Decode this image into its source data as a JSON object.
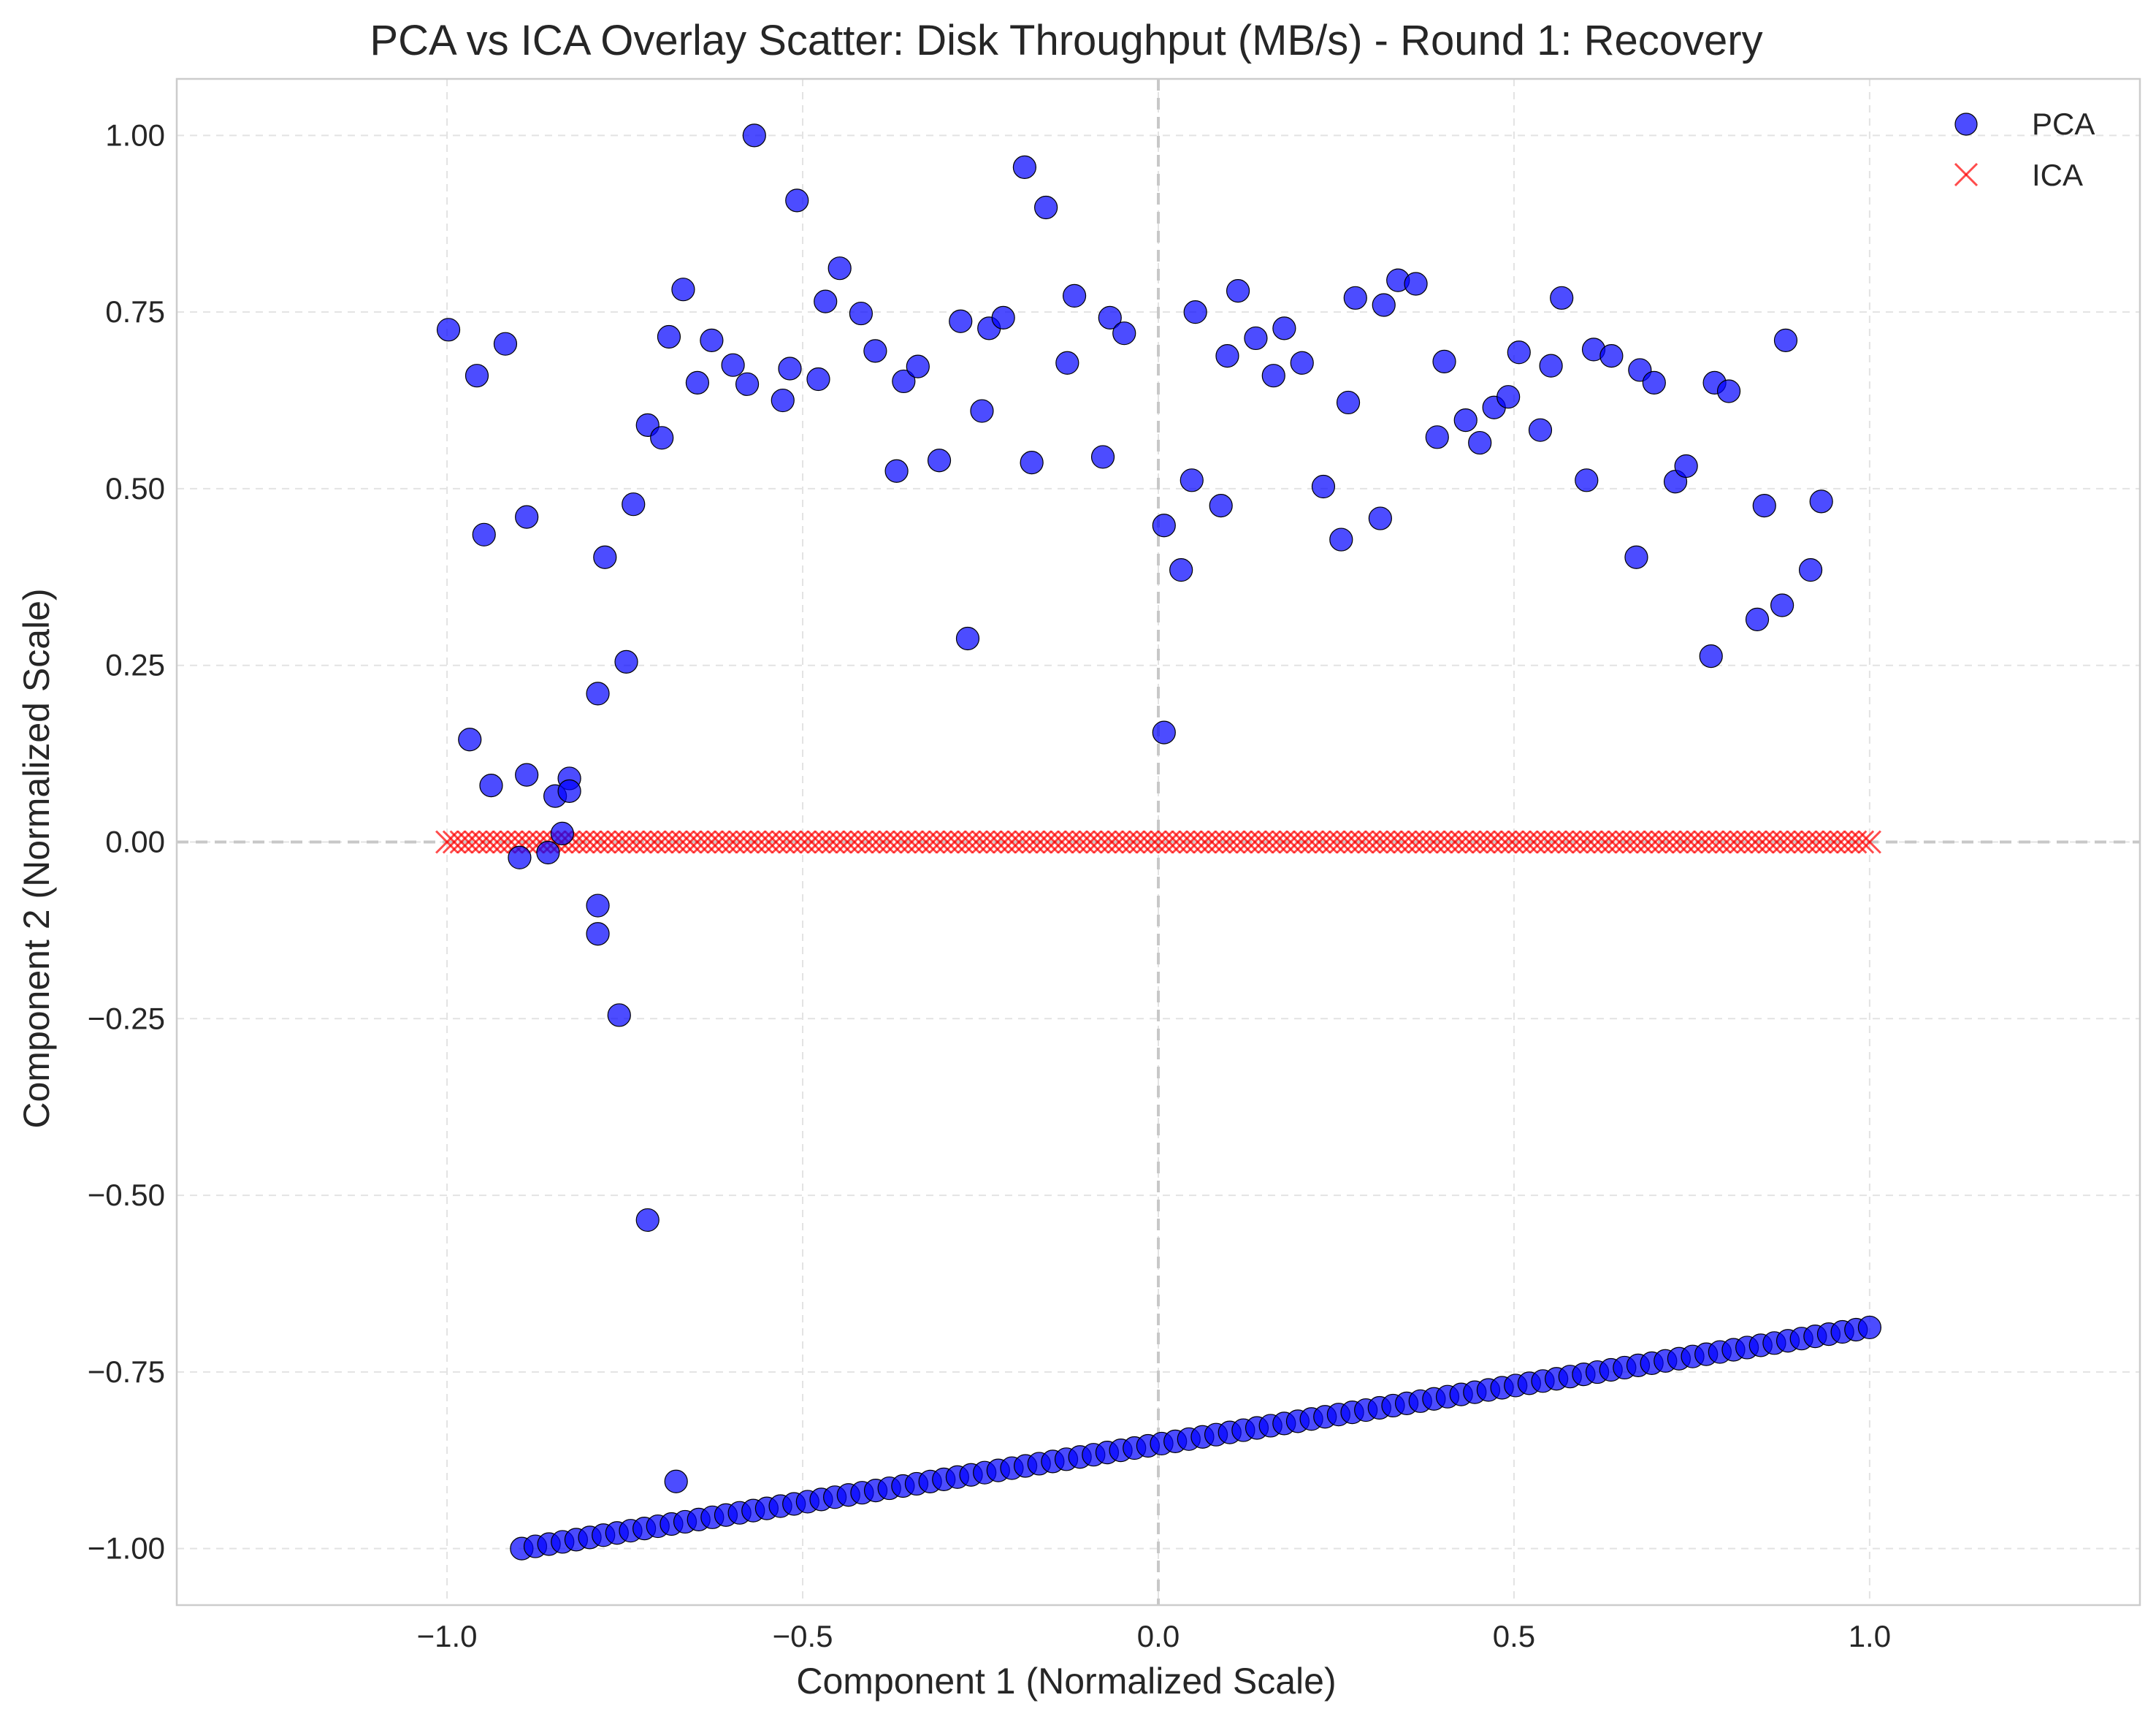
{
  "chart_data": {
    "type": "scatter",
    "title": "PCA vs ICA Overlay Scatter: Disk Throughput (MB/s) - Round 1: Recovery",
    "xlabel": "Component 1 (Normalized Scale)",
    "ylabel": "Component 2 (Normalized Scale)",
    "xlim": [
      -1.38,
      1.38
    ],
    "ylim": [
      -1.08,
      1.08
    ],
    "x_ticks": [
      -1.0,
      -0.5,
      0.0,
      0.5,
      1.0
    ],
    "x_tick_labels": [
      "−1.0",
      "−0.5",
      "0.0",
      "0.5",
      "1.0"
    ],
    "y_ticks": [
      1.0,
      0.75,
      0.5,
      0.25,
      0.0,
      -0.25,
      -0.5,
      -0.75,
      -1.0
    ],
    "y_tick_labels": [
      "1.00",
      "0.75",
      "0.50",
      "0.25",
      "0.00",
      "−0.25",
      "−0.50",
      "−0.75",
      "−1.00"
    ],
    "grid": true,
    "reference_lines": {
      "x": 0,
      "y": 0
    },
    "legend": {
      "placement": "top-right",
      "entries": [
        {
          "label": "PCA",
          "marker": "circle",
          "color": "#0000ff"
        },
        {
          "label": "ICA",
          "marker": "x",
          "color": "#ff0000"
        }
      ]
    },
    "series": [
      {
        "name": "PCA",
        "marker": "circle",
        "color": "#0000ff",
        "points": [
          [
            -0.998,
            0.725
          ],
          [
            -0.958,
            0.66
          ],
          [
            -0.918,
            0.705
          ],
          [
            -0.948,
            0.435
          ],
          [
            -0.888,
            0.46
          ],
          [
            -0.968,
            0.145
          ],
          [
            -0.938,
            0.08
          ],
          [
            -0.888,
            0.095
          ],
          [
            -0.828,
            0.09
          ],
          [
            -0.848,
            0.065
          ],
          [
            -0.828,
            0.072
          ],
          [
            -0.838,
            0.012
          ],
          [
            -0.898,
            -0.022
          ],
          [
            -0.858,
            -0.015
          ],
          [
            -0.788,
            0.21
          ],
          [
            -0.778,
            0.403
          ],
          [
            -0.748,
            0.255
          ],
          [
            -0.738,
            0.478
          ],
          [
            -0.788,
            -0.09
          ],
          [
            -0.788,
            -0.13
          ],
          [
            -0.758,
            -0.245
          ],
          [
            -0.718,
            -0.535
          ],
          [
            -0.678,
            -0.905
          ],
          [
            -0.718,
            0.59
          ],
          [
            -0.698,
            0.572
          ],
          [
            -0.688,
            0.715
          ],
          [
            -0.668,
            0.782
          ],
          [
            -0.648,
            0.65
          ],
          [
            -0.628,
            0.71
          ],
          [
            -0.598,
            0.675
          ],
          [
            -0.578,
            0.648
          ],
          [
            -0.568,
            1.0
          ],
          [
            -0.528,
            0.625
          ],
          [
            -0.518,
            0.67
          ],
          [
            -0.508,
            0.908
          ],
          [
            -0.478,
            0.655
          ],
          [
            -0.468,
            0.765
          ],
          [
            -0.448,
            0.812
          ],
          [
            -0.418,
            0.748
          ],
          [
            -0.398,
            0.695
          ],
          [
            -0.368,
            0.525
          ],
          [
            -0.358,
            0.652
          ],
          [
            -0.338,
            0.673
          ],
          [
            -0.308,
            0.54
          ],
          [
            -0.278,
            0.737
          ],
          [
            -0.268,
            0.288
          ],
          [
            -0.248,
            0.61
          ],
          [
            -0.238,
            0.727
          ],
          [
            -0.218,
            0.742
          ],
          [
            -0.188,
            0.955
          ],
          [
            -0.178,
            0.537
          ],
          [
            -0.158,
            0.898
          ],
          [
            -0.128,
            0.678
          ],
          [
            -0.118,
            0.773
          ],
          [
            -0.078,
            0.545
          ],
          [
            -0.068,
            0.742
          ],
          [
            -0.048,
            0.72
          ],
          [
            0.008,
            0.155
          ],
          [
            0.008,
            0.448
          ],
          [
            0.032,
            0.385
          ],
          [
            0.047,
            0.512
          ],
          [
            0.052,
            0.75
          ],
          [
            0.088,
            0.476
          ],
          [
            0.097,
            0.688
          ],
          [
            0.112,
            0.78
          ],
          [
            0.137,
            0.713
          ],
          [
            0.162,
            0.66
          ],
          [
            0.177,
            0.727
          ],
          [
            0.202,
            0.678
          ],
          [
            0.232,
            0.503
          ],
          [
            0.257,
            0.428
          ],
          [
            0.267,
            0.622
          ],
          [
            0.277,
            0.77
          ],
          [
            0.312,
            0.458
          ],
          [
            0.317,
            0.76
          ],
          [
            0.337,
            0.795
          ],
          [
            0.362,
            0.79
          ],
          [
            0.392,
            0.573
          ],
          [
            0.402,
            0.68
          ],
          [
            0.432,
            0.597
          ],
          [
            0.452,
            0.565
          ],
          [
            0.472,
            0.615
          ],
          [
            0.492,
            0.63
          ],
          [
            0.507,
            0.693
          ],
          [
            0.537,
            0.583
          ],
          [
            0.552,
            0.674
          ],
          [
            0.567,
            0.77
          ],
          [
            0.602,
            0.512
          ],
          [
            0.612,
            0.697
          ],
          [
            0.637,
            0.688
          ],
          [
            0.672,
            0.403
          ],
          [
            0.677,
            0.668
          ],
          [
            0.697,
            0.65
          ],
          [
            0.727,
            0.51
          ],
          [
            0.742,
            0.532
          ],
          [
            0.777,
            0.263
          ],
          [
            0.782,
            0.65
          ],
          [
            0.802,
            0.638
          ],
          [
            0.842,
            0.315
          ],
          [
            0.852,
            0.476
          ],
          [
            0.877,
            0.335
          ],
          [
            0.882,
            0.71
          ],
          [
            0.917,
            0.385
          ],
          [
            0.932,
            0.482
          ]
        ],
        "linear_run": {
          "x_start": -0.895,
          "x_end": 1.0,
          "y_start": -1.0,
          "y_end": -0.687,
          "count": 100
        }
      },
      {
        "name": "ICA",
        "marker": "x",
        "color": "#ff0000",
        "y": 0.0,
        "x_range": [
          -1.0,
          1.0
        ],
        "count": 200
      }
    ]
  }
}
